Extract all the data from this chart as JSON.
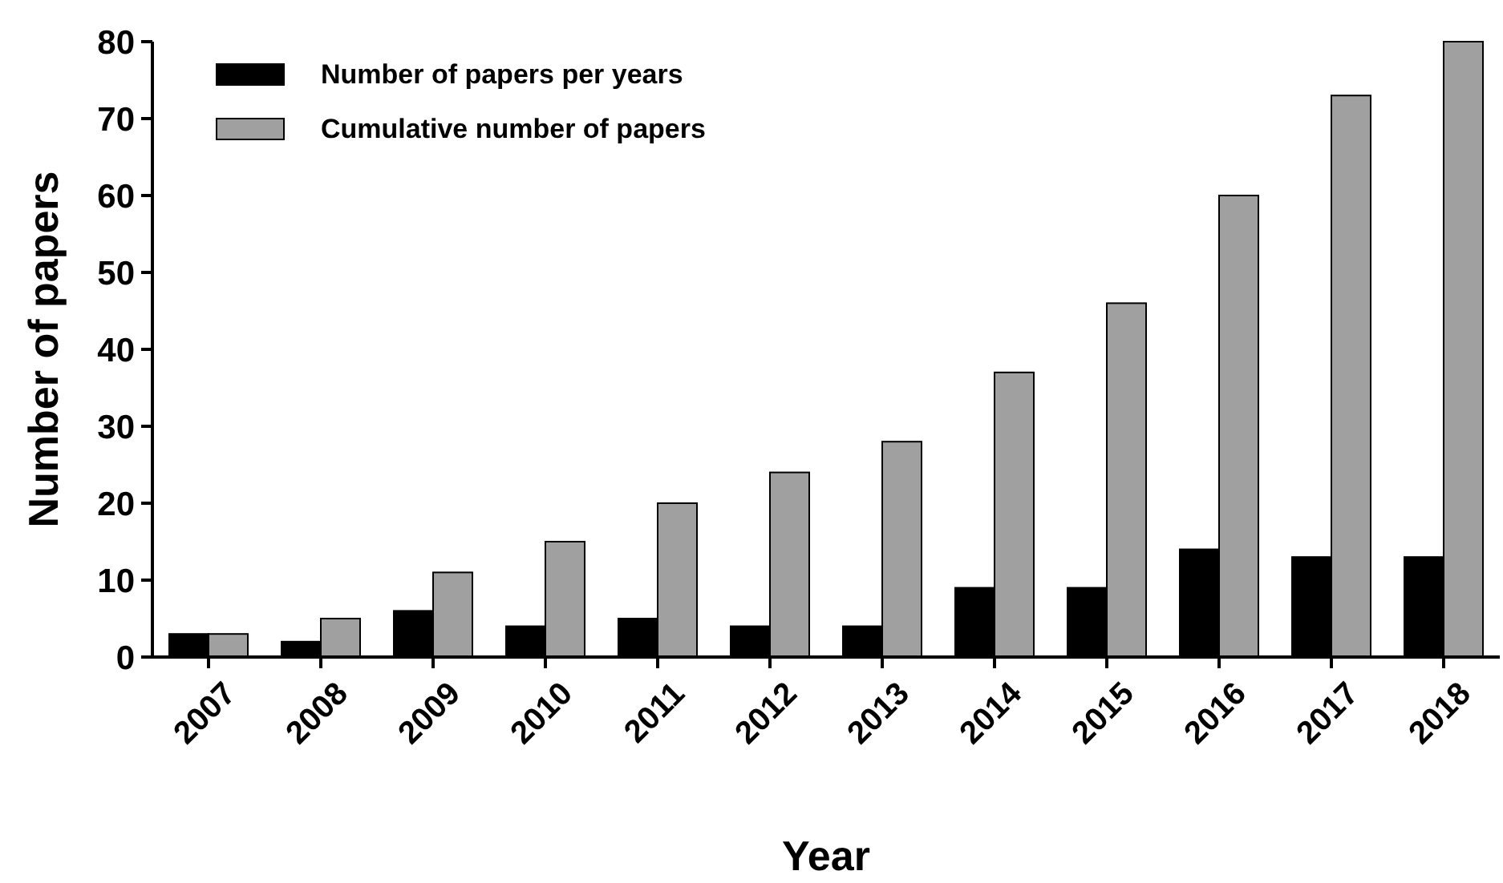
{
  "chart_data": {
    "type": "bar",
    "xlabel": "Year",
    "ylabel": "Number of papers",
    "categories": [
      "2007",
      "2008",
      "2009",
      "2010",
      "2011",
      "2012",
      "2013",
      "2014",
      "2015",
      "2016",
      "2017",
      "2018"
    ],
    "series": [
      {
        "name": "Number of papers per years",
        "color": "#000000",
        "values": [
          3,
          2,
          6,
          4,
          5,
          4,
          4,
          9,
          9,
          14,
          13,
          13
        ]
      },
      {
        "name": "Cumulative number of papers",
        "color": "#a0a0a0",
        "values": [
          3,
          5,
          11,
          15,
          20,
          24,
          28,
          37,
          46,
          60,
          73,
          80
        ]
      }
    ],
    "ylim": [
      0,
      80
    ],
    "yticks": [
      0,
      10,
      20,
      30,
      40,
      50,
      60,
      70,
      80
    ],
    "grid": false,
    "legend": "top left"
  }
}
